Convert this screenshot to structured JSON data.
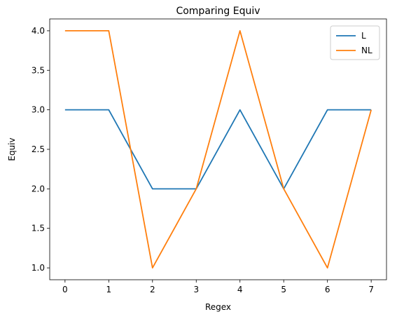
{
  "chart_data": {
    "type": "line",
    "title": "Comparing Equiv",
    "xlabel": "Regex",
    "ylabel": "Equiv",
    "x": [
      0,
      1,
      2,
      3,
      4,
      5,
      6,
      7
    ],
    "xticks": [
      0,
      1,
      2,
      3,
      4,
      5,
      6,
      7
    ],
    "yticks": [
      1.0,
      1.5,
      2.0,
      2.5,
      3.0,
      3.5,
      4.0
    ],
    "xlim": [
      -0.35,
      7.35
    ],
    "ylim": [
      0.85,
      4.15
    ],
    "grid": false,
    "legend_position": "top-right",
    "series": [
      {
        "name": "L",
        "color": "#1f77b4",
        "values": [
          3,
          3,
          2,
          2,
          3,
          2,
          3,
          3
        ]
      },
      {
        "name": "NL",
        "color": "#ff7f0e",
        "values": [
          4,
          4,
          1,
          2,
          4,
          2,
          1,
          3
        ]
      }
    ]
  }
}
